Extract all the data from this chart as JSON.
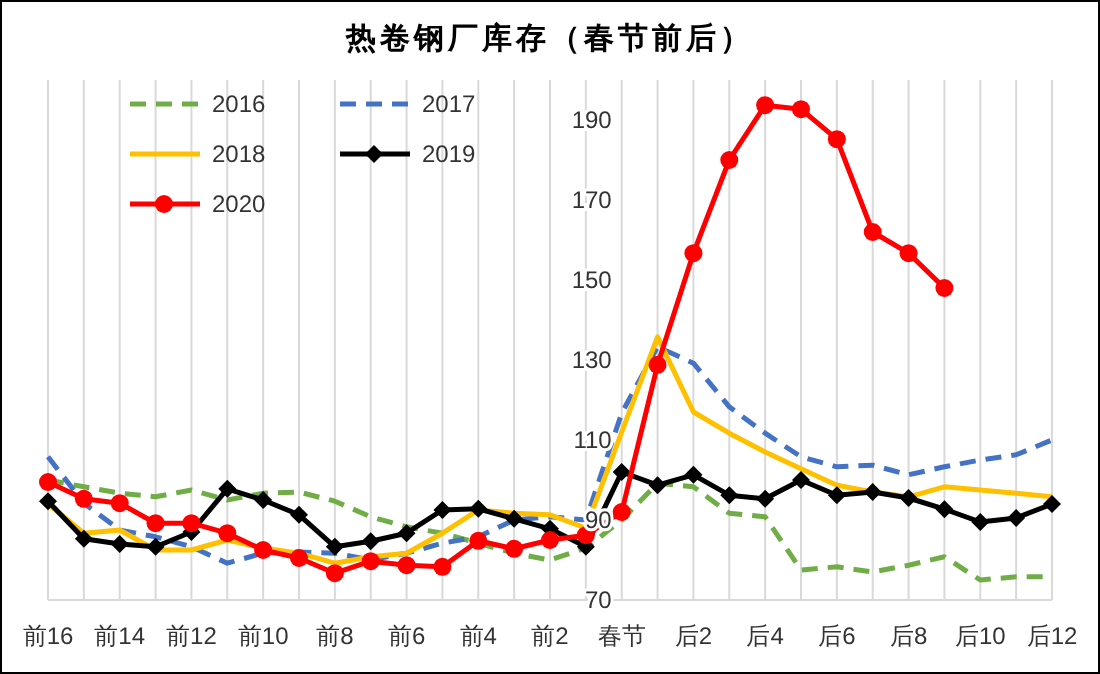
{
  "chart_data": {
    "type": "line",
    "title": "热卷钢厂库存（春节前后）",
    "categories": [
      "前16",
      null,
      "前14",
      null,
      "前12",
      null,
      "前10",
      null,
      "前8",
      null,
      "前6",
      null,
      "前4",
      null,
      "前2",
      null,
      "春节",
      null,
      "后2",
      null,
      "后4",
      null,
      "后6",
      null,
      "后8",
      null,
      "后10",
      null,
      "后12"
    ],
    "series": [
      {
        "name": "2016",
        "color": "#70ad47",
        "line_style": "dashed",
        "marker": "none",
        "values": [
          100,
          98.3,
          96.7,
          95.8,
          97.5,
          95,
          96.7,
          97,
          94.7,
          90.8,
          88.3,
          86.7,
          84.2,
          81.7,
          80,
          83,
          90,
          99.2,
          98.3,
          91.7,
          90.8,
          77.5,
          78.3,
          77,
          78.7,
          80.8,
          75,
          75.8,
          75.8
        ]
      },
      {
        "name": "2017",
        "color": "#4472c4",
        "line_style": "dashed",
        "marker": "none",
        "values": [
          105.8,
          94.2,
          87.5,
          85.8,
          83.3,
          79.2,
          81.7,
          82,
          81.7,
          80,
          81.7,
          84.2,
          85.8,
          90,
          90.8,
          90,
          116.7,
          133.3,
          129.2,
          118.3,
          111.7,
          105.8,
          103.3,
          103.7,
          101.3,
          103.3,
          105,
          106.3,
          110
        ]
      },
      {
        "name": "2018",
        "color": "#ffc000",
        "line_style": "solid",
        "marker": "none",
        "values": [
          94,
          86.7,
          87.5,
          82.5,
          82.5,
          85,
          83,
          81.7,
          79.2,
          80.8,
          81.7,
          86.7,
          92.5,
          91.7,
          91.3,
          88,
          112,
          135.8,
          117,
          111.7,
          107,
          102.8,
          98.7,
          97,
          95.8,
          98.3,
          97.5,
          96.7,
          95.8
        ]
      },
      {
        "name": "2019",
        "color": "#000000",
        "line_style": "solid",
        "marker": "diamond",
        "values": [
          94.7,
          85.3,
          84,
          83.3,
          87,
          97.8,
          95,
          91.3,
          83.3,
          84.7,
          86.7,
          92.5,
          92.8,
          90.3,
          87.8,
          83.3,
          102,
          98.7,
          101.3,
          96.2,
          95.3,
          100,
          96.2,
          97,
          95.5,
          92.7,
          89.5,
          90.5,
          94
        ]
      },
      {
        "name": "2020",
        "color": "#ff0000",
        "line_style": "solid",
        "marker": "circle",
        "values": [
          99.5,
          95.3,
          94.2,
          89.2,
          89.2,
          86.7,
          82.5,
          80.5,
          76.7,
          79.7,
          78.7,
          78.3,
          84.8,
          82.8,
          85,
          86.2,
          92,
          128.8,
          156.7,
          180,
          193.7,
          192.7,
          185.2,
          162,
          156.7,
          148,
          null,
          null,
          null
        ]
      }
    ],
    "ylim": [
      70,
      200
    ],
    "yticks": [
      70,
      90,
      110,
      130,
      150,
      170,
      190
    ],
    "grid": "x",
    "legend": "top left"
  }
}
